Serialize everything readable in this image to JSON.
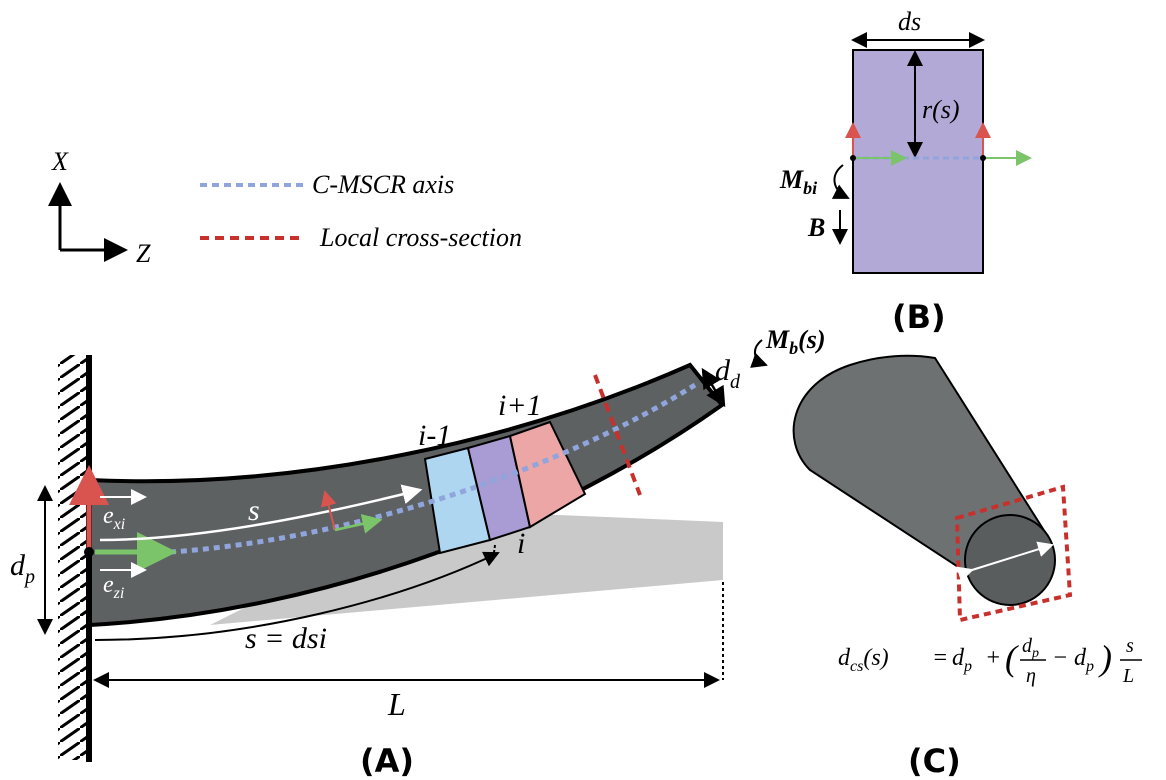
{
  "axes_legend": {
    "x_label": "X",
    "z_label": "Z"
  },
  "legend": {
    "items": [
      "C-MSCR axis",
      "Local cross-section"
    ]
  },
  "panel_a": {
    "label": "(A)",
    "segment_labels": [
      "i-1",
      "i",
      "i+1"
    ],
    "arc_label": "s",
    "arc_length": "s = dsi",
    "length": "L",
    "base_diameter": {
      "base": "d",
      "sub": "p"
    },
    "tip_diameter": {
      "base": "d",
      "sub": "d"
    },
    "e_x": {
      "base": "e",
      "sub": "xi"
    },
    "e_z": {
      "base": "e",
      "sub": "zi"
    },
    "moment": {
      "base": "M",
      "sub": "b",
      "suffix": "(s)"
    }
  },
  "panel_b": {
    "label": "(B)",
    "width": "ds",
    "radius": "r(s)",
    "moment": {
      "base": "M",
      "sub": "bi"
    },
    "field": "B"
  },
  "panel_c": {
    "label": "(C)",
    "formula": {
      "lhs": {
        "base": "d",
        "sub": "cs",
        "arg": "(s)"
      },
      "eq": "=",
      "term1": {
        "base": "d",
        "sub": "p"
      },
      "plus": "+",
      "open": "(",
      "frac_num": {
        "base": "d",
        "sub": "p"
      },
      "frac_den": "η",
      "minus": "−",
      "term2": {
        "base": "d",
        "sub": "p"
      },
      "close": ")",
      "s_num": "s",
      "s_den": "L"
    }
  }
}
